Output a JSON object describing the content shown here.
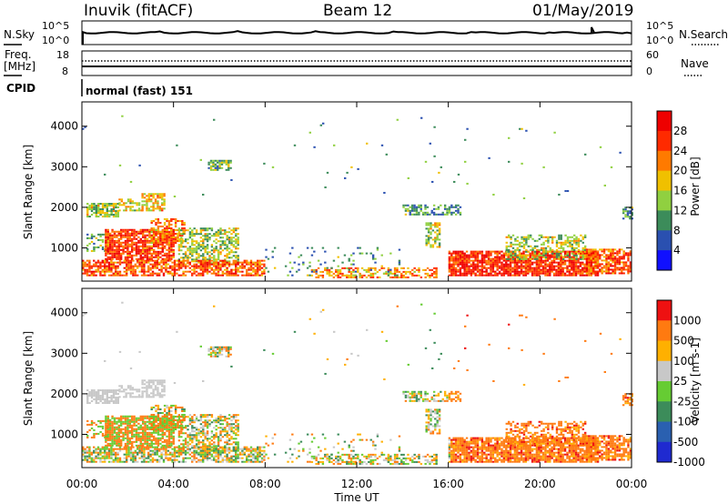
{
  "header": {
    "station": "Inuvik (fitACF)",
    "beam": "Beam 12",
    "date": "01/May/2019"
  },
  "noise_panel": {
    "left_label": "N.Sky",
    "right_label": "N.Search",
    "left_ticks": [
      "10^5",
      "10^0"
    ],
    "right_ticks": [
      "10^5",
      "10^0"
    ]
  },
  "freq_panel": {
    "left_label_1": "Freq.",
    "left_label_2": "[MHz]",
    "right_label": "Nave",
    "left_ticks": [
      "18",
      "8"
    ],
    "right_ticks": [
      "60",
      "0"
    ]
  },
  "cpid": {
    "label": "CPID",
    "mode": "normal (fast) 151"
  },
  "chart_data": [
    {
      "type": "heatmap",
      "name": "power",
      "ylabel": "Slant Range [km]",
      "yticks": [
        "1000",
        "2000",
        "3000",
        "4000"
      ],
      "colorbar_label": "Power [dB]",
      "colorbar_ticks": [
        "4",
        "8",
        "12",
        "16",
        "20",
        "24",
        "28"
      ],
      "colors": [
        "#1010ff",
        "#2a50b0",
        "#3c8c5a",
        "#90d040",
        "#f0c000",
        "#ff7a00",
        "#ff2a00",
        "#ee0000"
      ]
    },
    {
      "type": "heatmap",
      "name": "velocity",
      "ylabel": "Slant Range [km]",
      "yticks": [
        "1000",
        "2000",
        "3000",
        "4000"
      ],
      "colorbar_label": "Velocity [m s-1]",
      "colorbar_ticks": [
        "1000",
        "500",
        "100",
        "25",
        "-25",
        "-100",
        "-500",
        "-1000"
      ],
      "colors": [
        "#1f2ad0",
        "#2a60b0",
        "#3c8c5a",
        "#66cc33",
        "#c8c8c8",
        "#ffb000",
        "#ff7a10",
        "#ee1111"
      ]
    }
  ],
  "x_axis": {
    "label": "Time UT",
    "ticks": [
      "00:00",
      "04:00",
      "08:00",
      "12:00",
      "16:00",
      "20:00",
      "00:00"
    ]
  }
}
